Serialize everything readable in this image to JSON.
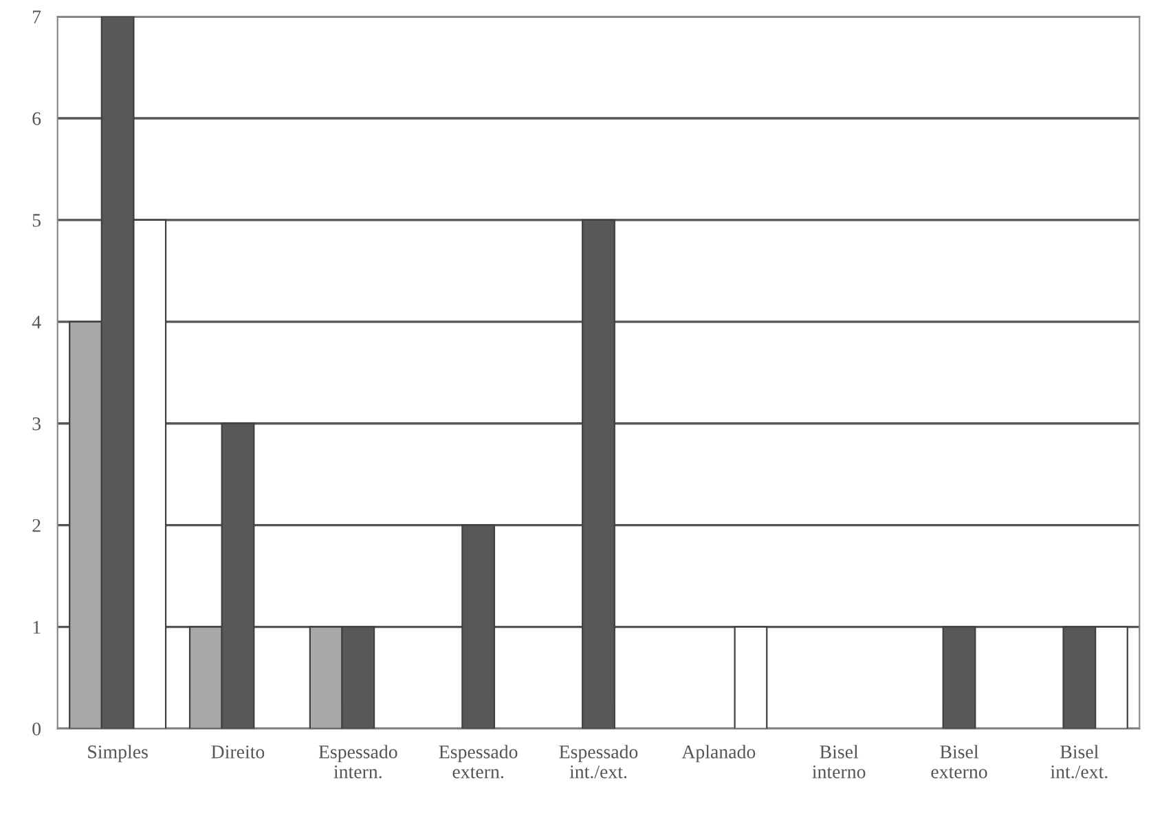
{
  "chart_data": {
    "type": "bar",
    "categories": [
      "Simples",
      "Direito",
      "Espessado\nintern.",
      "Espessado\nextern.",
      "Espessado\nint./ext.",
      "Aplanado",
      "Bisel\ninterno",
      "Bisel\nexterno",
      "Bisel\nint./ext."
    ],
    "series": [
      {
        "color": "#a8a8a8",
        "values": [
          4,
          1,
          1,
          0,
          0,
          0,
          0,
          0,
          0
        ]
      },
      {
        "color": "#585858",
        "values": [
          7,
          3,
          1,
          2,
          5,
          0,
          0,
          1,
          1
        ]
      },
      {
        "color": "#ffffff",
        "values": [
          5,
          0,
          0,
          0,
          0,
          1,
          0,
          0,
          1
        ]
      }
    ],
    "ylim": [
      0,
      7
    ],
    "yticks": [
      0,
      1,
      2,
      3,
      4,
      5,
      6,
      7
    ],
    "grid": "y",
    "legend": false
  }
}
